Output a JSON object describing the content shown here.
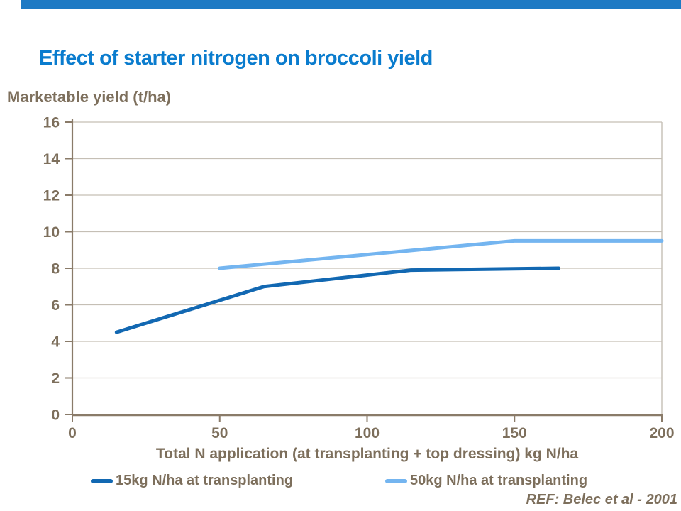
{
  "top_bar": {
    "color": "#1E7AC4"
  },
  "ref_note": "REF: Belec et al - 2001",
  "text_color": "#7D6F5C",
  "title_color": "#0A7CCE",
  "chart_data": {
    "type": "line",
    "title": "Effect of starter nitrogen on broccoli yield",
    "xlabel": "Total N application (at transplanting + top dressing) kg N/ha",
    "ylabel": "Marketable yield (t/ha)",
    "xlim": [
      0,
      200
    ],
    "ylim": [
      0,
      16
    ],
    "x_ticks": [
      0,
      50,
      100,
      150,
      200
    ],
    "y_ticks": [
      0,
      2,
      4,
      6,
      8,
      10,
      12,
      14,
      16
    ],
    "grid": "horizontal",
    "legend_position": "bottom",
    "axis_color": "#8A7B69",
    "gridline_color": "#C5BFB5",
    "series": [
      {
        "name": "15kg N/ha at transplanting",
        "color": "#1268B2",
        "x": [
          15,
          65,
          115,
          165
        ],
        "y": [
          4.5,
          7.0,
          7.9,
          8.0
        ]
      },
      {
        "name": "50kg N/ha at transplanting",
        "color": "#74B5F0",
        "x": [
          50,
          150,
          200
        ],
        "y": [
          8.0,
          9.5,
          9.5
        ]
      }
    ]
  }
}
